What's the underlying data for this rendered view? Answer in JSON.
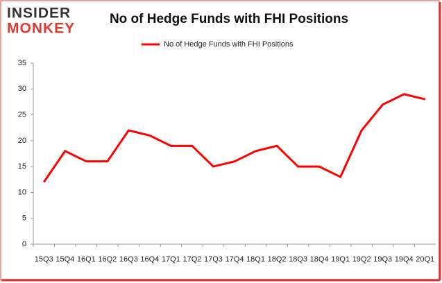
{
  "logo": {
    "line1": "INSIDER",
    "line2": "MONKEY"
  },
  "chart_data": {
    "type": "line",
    "title": "No of Hedge Funds with FHI Positions",
    "categories": [
      "15Q3",
      "15Q4",
      "16Q1",
      "16Q2",
      "16Q3",
      "16Q4",
      "17Q1",
      "17Q2",
      "17Q3",
      "17Q4",
      "18Q1",
      "18Q2",
      "18Q3",
      "18Q4",
      "19Q1",
      "19Q2",
      "19Q3",
      "19Q4",
      "20Q1"
    ],
    "series": [
      {
        "name": "No of Hedge Funds with FHI Positions",
        "color": "#ff0000",
        "values": [
          12,
          18,
          16,
          16,
          22,
          21,
          19,
          19,
          15,
          16,
          18,
          19,
          15,
          15,
          13,
          22,
          27,
          29,
          28
        ]
      }
    ],
    "ylim": [
      0,
      35
    ],
    "yticks": [
      0,
      5,
      10,
      15,
      20,
      25,
      30,
      35
    ],
    "grid": false,
    "legend": "top"
  }
}
